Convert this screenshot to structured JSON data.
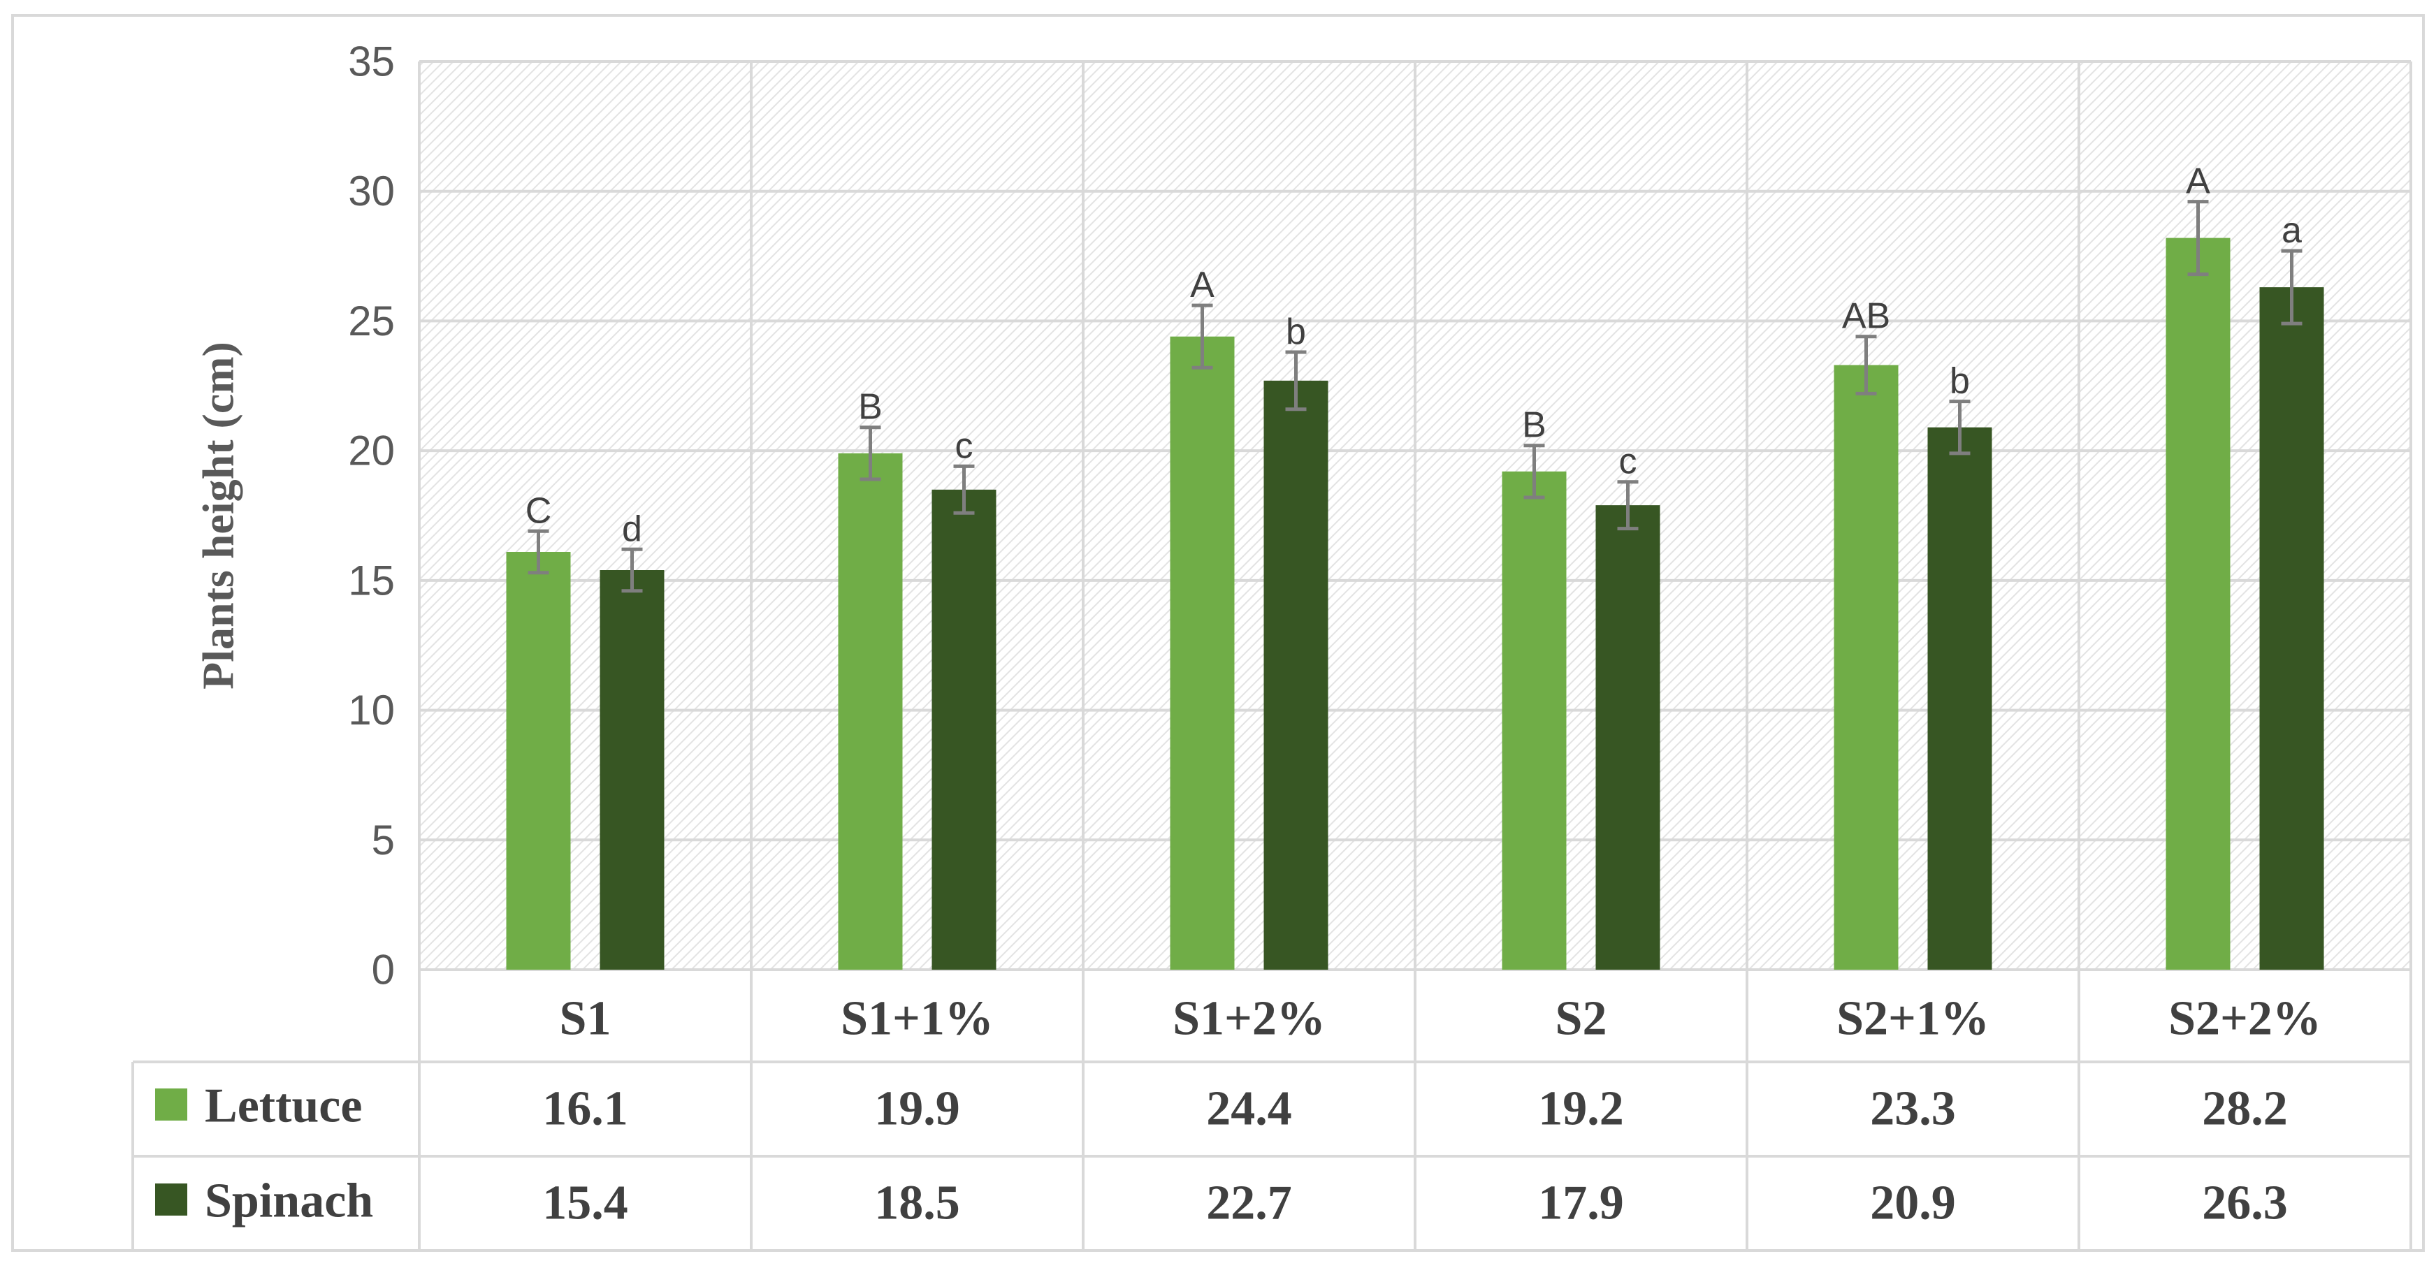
{
  "chart_data": {
    "type": "bar",
    "ylabel": "Plants height (cm)",
    "xlabel": "",
    "ylim": [
      0,
      35
    ],
    "y_ticks": [
      0,
      5,
      10,
      15,
      20,
      25,
      30,
      35
    ],
    "grid": true,
    "legend": "data-table",
    "categories": [
      "S1",
      "S1+1%",
      "S1+2%",
      "S2",
      "S2+1%",
      "S2+2%"
    ],
    "series": [
      {
        "name": "Lettuce",
        "color": "#70ad47",
        "values": [
          16.1,
          19.9,
          24.4,
          19.2,
          23.3,
          28.2
        ],
        "value_labels": [
          "16.1",
          "19.9",
          "24.4",
          "19.2",
          "23.3",
          "28.2"
        ],
        "errors": [
          0.8,
          1.0,
          1.2,
          1.0,
          1.1,
          1.4
        ],
        "significance": [
          "C",
          "B",
          "A",
          "B",
          "AB",
          "A"
        ]
      },
      {
        "name": "Spinach",
        "color": "#375623",
        "values": [
          15.4,
          18.5,
          22.7,
          17.9,
          20.9,
          26.3
        ],
        "value_labels": [
          "15.4",
          "18.5",
          "22.7",
          "17.9",
          "20.9",
          "26.3"
        ],
        "errors": [
          0.8,
          0.9,
          1.1,
          0.9,
          1.0,
          1.4
        ],
        "significance": [
          "d",
          "c",
          "b",
          "c",
          "b",
          "a"
        ]
      }
    ]
  }
}
